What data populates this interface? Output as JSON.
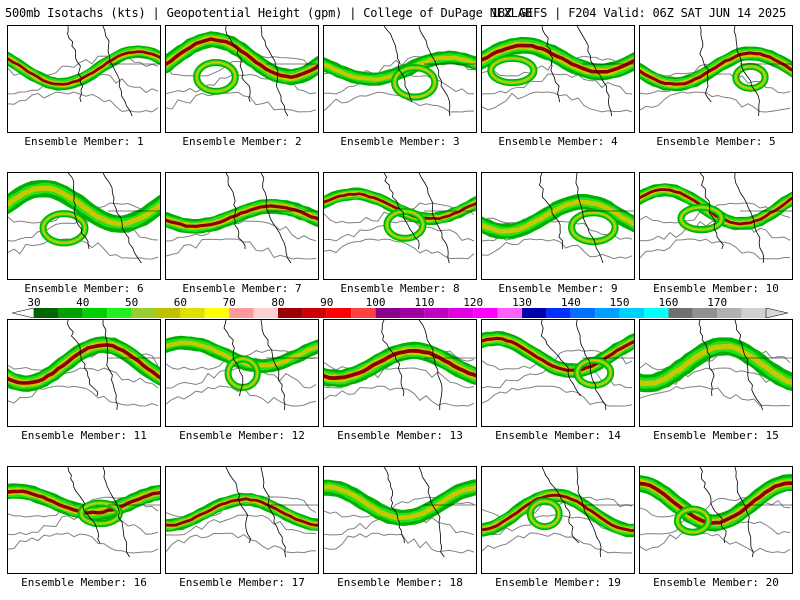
{
  "header": {
    "left": "500mb Isotachs (kts) | Geopotential Height (gpm) | College of DuPage NEXLAB",
    "right": "18Z GEFS | F204 Valid: 06Z SAT JUN 14 2025"
  },
  "members": [
    "Ensemble Member: 1",
    "Ensemble Member: 2",
    "Ensemble Member: 3",
    "Ensemble Member: 4",
    "Ensemble Member: 5",
    "Ensemble Member: 6",
    "Ensemble Member: 7",
    "Ensemble Member: 8",
    "Ensemble Member: 9",
    "Ensemble Member: 10",
    "Ensemble Member: 11",
    "Ensemble Member: 12",
    "Ensemble Member: 13",
    "Ensemble Member: 14",
    "Ensemble Member: 15",
    "Ensemble Member: 16",
    "Ensemble Member: 17",
    "Ensemble Member: 18",
    "Ensemble Member: 19",
    "Ensemble Member: 20"
  ],
  "colorbar": {
    "ticks": [
      "30",
      "40",
      "50",
      "60",
      "70",
      "80",
      "90",
      "100",
      "110",
      "120",
      "130",
      "140",
      "150",
      "160",
      "170"
    ],
    "colors": [
      "#006400",
      "#00a000",
      "#00d000",
      "#20f020",
      "#9acd32",
      "#c0c000",
      "#e0e000",
      "#ffff00",
      "#ff9999",
      "#ffd0d0",
      "#990000",
      "#cc0000",
      "#ff0000",
      "#ff4040",
      "#8b008b",
      "#a000a0",
      "#c000c0",
      "#e000e0",
      "#ff00ff",
      "#ff60ff",
      "#0000aa",
      "#0030ff",
      "#0070ff",
      "#00a0ff",
      "#00d0ff",
      "#00ffff",
      "#707070",
      "#909090",
      "#b0b0b0",
      "#d0d0d0"
    ]
  },
  "colors": {
    "jet_green": "#00b000",
    "jet_light": "#20e020",
    "jet_yellow": "#c8c800",
    "jet_dark_red": "#8b0000",
    "height_contour": "#808080",
    "coastline": "#000000"
  }
}
